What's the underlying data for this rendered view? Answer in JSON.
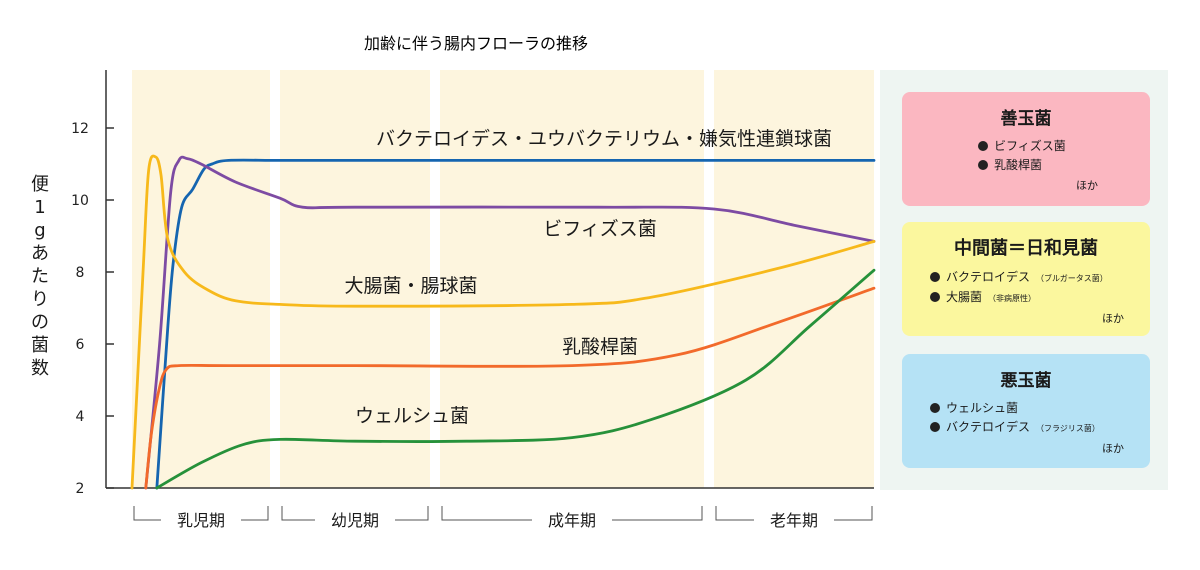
{
  "chart_data": {
    "type": "line",
    "title": "加齢に伴う腸内フローラの推移",
    "ylabel": "便1gあたりの菌数",
    "ylim": [
      2,
      13
    ],
    "yticks": [
      2,
      4,
      6,
      8,
      10,
      12
    ],
    "phases": [
      "乳児期",
      "幼児期",
      "成年期",
      "老年期"
    ],
    "series": [
      {
        "name": "バクテロイデス・ユウバクテリウム・嫌気性連鎖球菌",
        "color": "#1565b0",
        "points": [
          [
            0.18,
            2.0
          ],
          [
            0.26,
            6.5
          ],
          [
            0.3,
            8.3
          ],
          [
            0.36,
            9.8
          ],
          [
            0.44,
            10.3
          ],
          [
            0.52,
            10.85
          ],
          [
            0.58,
            11.0
          ],
          [
            0.7,
            11.1
          ],
          [
            1.0,
            11.1
          ],
          [
            1.5,
            11.1
          ],
          [
            2.5,
            11.1
          ],
          [
            4.0,
            11.1
          ]
        ]
      },
      {
        "name": "ビフィズス菌",
        "color": "#7d4ba3",
        "points": [
          [
            0.1,
            2.0
          ],
          [
            0.2,
            6.0
          ],
          [
            0.28,
            10.2
          ],
          [
            0.34,
            11.1
          ],
          [
            0.4,
            11.15
          ],
          [
            0.5,
            11.0
          ],
          [
            0.75,
            10.5
          ],
          [
            1.0,
            10.05
          ],
          [
            1.15,
            9.8
          ],
          [
            1.5,
            9.8
          ],
          [
            2.6,
            9.8
          ],
          [
            3.0,
            9.75
          ],
          [
            3.5,
            9.3
          ],
          [
            4.0,
            8.85
          ]
        ]
      },
      {
        "name": "大腸菌・腸球菌",
        "color": "#f7b91b",
        "points": [
          [
            0.0,
            2.0
          ],
          [
            0.08,
            8.0
          ],
          [
            0.12,
            10.8
          ],
          [
            0.17,
            11.2
          ],
          [
            0.21,
            10.7
          ],
          [
            0.26,
            8.9
          ],
          [
            0.38,
            8.0
          ],
          [
            0.55,
            7.5
          ],
          [
            0.75,
            7.2
          ],
          [
            1.0,
            7.1
          ],
          [
            1.5,
            7.05
          ],
          [
            2.5,
            7.1
          ],
          [
            2.8,
            7.3
          ],
          [
            3.4,
            8.1
          ],
          [
            4.0,
            8.85
          ]
        ]
      },
      {
        "name": "乳酸桿菌",
        "color": "#f26a2b",
        "points": [
          [
            0.1,
            2.0
          ],
          [
            0.14,
            3.5
          ],
          [
            0.2,
            4.8
          ],
          [
            0.25,
            5.3
          ],
          [
            0.34,
            5.4
          ],
          [
            0.7,
            5.4
          ],
          [
            1.5,
            5.4
          ],
          [
            2.5,
            5.4
          ],
          [
            2.9,
            5.7
          ],
          [
            3.4,
            6.6
          ],
          [
            4.0,
            7.55
          ]
        ]
      },
      {
        "name": "ウェルシュ菌",
        "color": "#26913a",
        "points": [
          [
            0.18,
            2.0
          ],
          [
            0.5,
            2.7
          ],
          [
            0.8,
            3.2
          ],
          [
            1.0,
            3.35
          ],
          [
            1.5,
            3.3
          ],
          [
            2.1,
            3.3
          ],
          [
            2.5,
            3.4
          ],
          [
            2.8,
            3.9
          ],
          [
            3.2,
            5.0
          ],
          [
            3.6,
            6.5
          ],
          [
            4.0,
            8.05
          ]
        ]
      }
    ]
  },
  "legend": {
    "good": {
      "title": "善玉菌",
      "items": [
        {
          "label": "ビフィズス菌"
        },
        {
          "label": "乳酸桿菌"
        }
      ],
      "others": "ほか"
    },
    "neutral": {
      "title": "中間菌＝日和見菌",
      "items": [
        {
          "label": "バクテロイデス",
          "note": "（ブルガータス菌）"
        },
        {
          "label": "大腸菌",
          "note": "（非病原性）"
        }
      ],
      "others": "ほか"
    },
    "bad": {
      "title": "悪玉菌",
      "items": [
        {
          "label": "ウェルシュ菌"
        },
        {
          "label": "バクテロイデス",
          "note": "（フラジリス菌）"
        }
      ],
      "others": "ほか"
    }
  },
  "colors": {
    "phase_band": "#fdf5de",
    "axis": "#333333"
  }
}
